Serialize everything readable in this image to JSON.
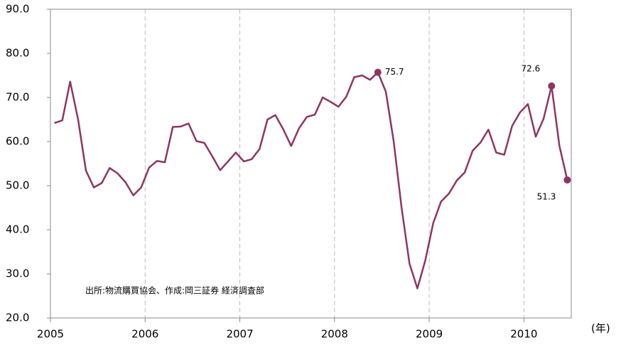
{
  "chart_data": {
    "type": "line",
    "x": [
      2005.042,
      2005.125,
      2005.208,
      2005.292,
      2005.375,
      2005.458,
      2005.542,
      2005.625,
      2005.708,
      2005.792,
      2005.875,
      2005.958,
      2006.042,
      2006.125,
      2006.208,
      2006.292,
      2006.375,
      2006.458,
      2006.542,
      2006.625,
      2006.708,
      2006.792,
      2006.875,
      2006.958,
      2007.042,
      2007.125,
      2007.208,
      2007.292,
      2007.375,
      2007.458,
      2007.542,
      2007.625,
      2007.708,
      2007.792,
      2007.875,
      2007.958,
      2008.042,
      2008.125,
      2008.208,
      2008.292,
      2008.375,
      2008.458,
      2008.542,
      2008.625,
      2008.708,
      2008.792,
      2008.875,
      2008.958,
      2009.042,
      2009.125,
      2009.208,
      2009.292,
      2009.375,
      2009.458,
      2009.542,
      2009.625,
      2009.708,
      2009.792,
      2009.875,
      2009.958,
      2010.042,
      2010.125,
      2010.208,
      2010.292,
      2010.375,
      2010.458
    ],
    "series": [
      {
        "color": "#8e3563",
        "values": [
          64.2,
          64.8,
          73.6,
          65,
          53.4,
          49.6,
          50.6,
          54,
          52.8,
          50.8,
          47.8,
          49.6,
          54.1,
          55.6,
          55.3,
          63.3,
          63.4,
          64.1,
          60.1,
          59.7,
          56.7,
          53.5,
          55.5,
          57.5,
          55.5,
          56,
          58.3,
          65,
          66,
          62.8,
          59,
          63,
          65.6,
          66.1,
          70,
          69,
          67.9,
          70.2,
          74.6,
          75,
          74,
          75.7,
          71.3,
          60,
          45,
          32.3,
          26.7,
          33,
          41.5,
          46.4,
          48.2,
          51.2,
          53,
          57.9,
          59.8,
          62.7,
          57.5,
          57,
          63.5,
          66.6,
          68.5,
          61.1,
          65.2,
          72.6,
          59,
          51.3
        ]
      }
    ],
    "labeled_points": [
      41,
      63,
      65
    ],
    "xlim": [
      2005,
      2010.5
    ],
    "xticks": [
      2005,
      2006,
      2007,
      2008,
      2009,
      2010
    ],
    "ylim": [
      20,
      90
    ],
    "yticks": [
      {
        "value": 20,
        "label": "20.0"
      },
      {
        "value": 30,
        "label": "30.0"
      },
      {
        "value": 40,
        "label": "40.0"
      },
      {
        "value": 50,
        "label": "50.0"
      },
      {
        "value": 60,
        "label": "60.0"
      },
      {
        "value": 70,
        "label": "70.0"
      },
      {
        "value": 80,
        "label": "80.0"
      },
      {
        "value": 90,
        "label": "90.0"
      }
    ],
    "grid": true,
    "note": "出所:物流購買協会、作成:岡三証券 経済調査部",
    "x_unit": "(年)"
  }
}
